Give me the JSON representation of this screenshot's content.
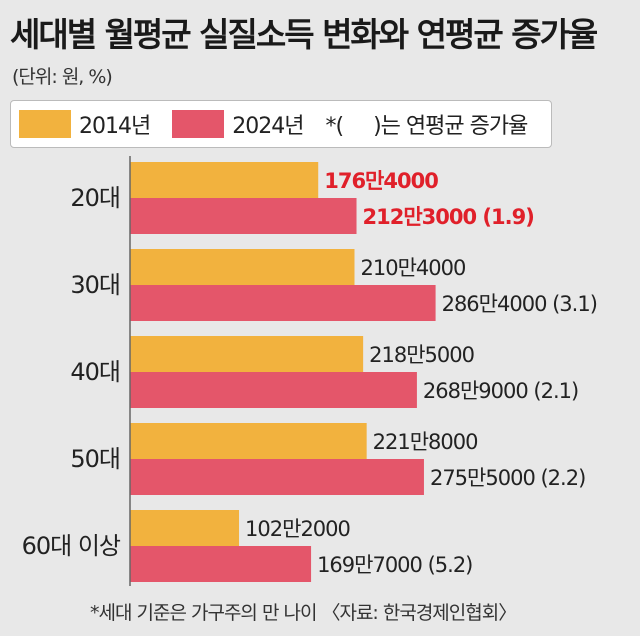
{
  "title": "세대별 월평균 실질소득 변화와 연평균 증가율",
  "unit": "(단위: 원, %)",
  "legend": {
    "note_prefix": "*(",
    "note_suffix": ")는 연평균 증가율"
  },
  "footer": "*세대 기준은 가구주의 만 나이 〈자료: 한국경제인협회〉",
  "colors": {
    "series_2014": "#f2b23e",
    "series_2024": "#e4566a",
    "highlight_text": "#e0202a"
  },
  "chart_data": {
    "type": "bar",
    "orientation": "horizontal",
    "categories": [
      "20대",
      "30대",
      "40대",
      "50대",
      "60대 이상"
    ],
    "series": [
      {
        "name": "2014년",
        "values": [
          1764000,
          2104000,
          2185000,
          2218000,
          1022000
        ],
        "labels": [
          "176만4000",
          "210만4000",
          "218만5000",
          "221만8000",
          "102만2000"
        ]
      },
      {
        "name": "2024년",
        "values": [
          2123000,
          2864000,
          2689000,
          2755000,
          1697000
        ],
        "labels": [
          "212만3000 (1.9)",
          "286만4000 (3.1)",
          "268만9000 (2.1)",
          "275만5000 (2.2)",
          "169만7000 (5.2)"
        ]
      }
    ],
    "highlight_category": "20대",
    "xlim": [
      0,
      3400000
    ]
  }
}
